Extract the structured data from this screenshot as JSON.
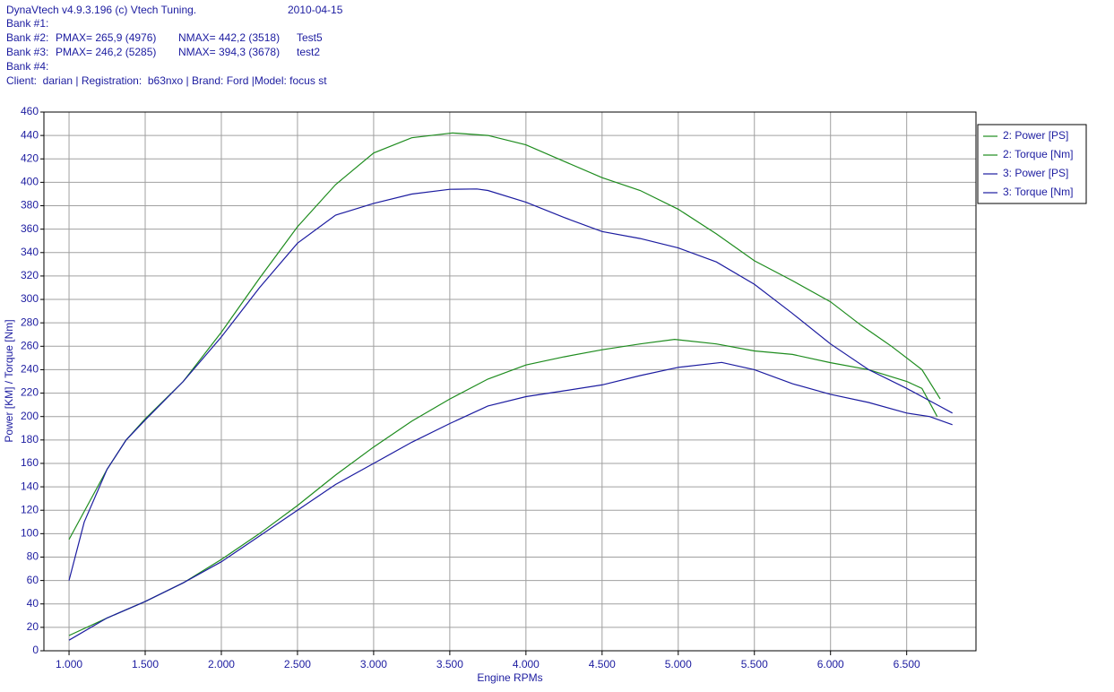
{
  "header": {
    "software": "DynaVtech v4.9.3.196 (c) Vtech Tuning.",
    "date": "2010-04-15",
    "banks": [
      {
        "label": "Bank #1:"
      },
      {
        "label": "Bank #2:",
        "pmax": "PMAX= 265,9 (4976)",
        "nmax": "NMAX= 442,2 (3518)",
        "name": "Test5"
      },
      {
        "label": "Bank #3:",
        "pmax": "PMAX= 246,2 (5285)",
        "nmax": "NMAX= 394,3 (3678)",
        "name": "test2"
      },
      {
        "label": "Bank #4:"
      }
    ],
    "client": "Client:  darian | Registration:  b63nxo | Brand: Ford |Model: focus st"
  },
  "chart_data": {
    "type": "line",
    "x_label": "Engine RPMs",
    "y_label": "Power [KM] / Torque [Nm]",
    "xlim": [
      835,
      6955
    ],
    "ylim": [
      0,
      460
    ],
    "xticks": [
      {
        "value": 1000,
        "label": "1.000"
      },
      {
        "value": 1500,
        "label": "1.500"
      },
      {
        "value": 2000,
        "label": "2.000"
      },
      {
        "value": 2500,
        "label": "2.500"
      },
      {
        "value": 3000,
        "label": "3.000"
      },
      {
        "value": 3500,
        "label": "3.500"
      },
      {
        "value": 4000,
        "label": "4.000"
      },
      {
        "value": 4500,
        "label": "4.500"
      },
      {
        "value": 5000,
        "label": "5.000"
      },
      {
        "value": 5500,
        "label": "5.500"
      },
      {
        "value": 6000,
        "label": "6.000"
      },
      {
        "value": 6500,
        "label": "6.500"
      }
    ],
    "yticks": [
      0,
      20,
      40,
      60,
      80,
      100,
      120,
      140,
      160,
      180,
      200,
      220,
      240,
      260,
      280,
      300,
      320,
      340,
      360,
      380,
      400,
      420,
      440,
      460
    ],
    "grid": true,
    "legend": "right",
    "series": [
      {
        "name": "2: Power [PS]",
        "color": "#1e8c1e",
        "x": [
          1000,
          1250,
          1500,
          1750,
          2000,
          2250,
          2500,
          2750,
          3000,
          3250,
          3500,
          3750,
          4000,
          4250,
          4500,
          4750,
          4976,
          5250,
          5500,
          5750,
          6000,
          6250,
          6500,
          6600,
          6700
        ],
        "values": [
          13,
          28,
          42,
          58,
          78,
          100,
          124,
          150,
          174,
          196,
          215,
          232,
          244,
          251,
          257,
          262,
          265.9,
          262,
          256,
          253,
          246,
          240,
          230,
          224,
          200
        ]
      },
      {
        "name": "2: Torque [Nm]",
        "color": "#1e8c1e",
        "x": [
          1000,
          1250,
          1375,
          1500,
          1750,
          2000,
          2250,
          2500,
          2750,
          3000,
          3250,
          3518,
          3750,
          4000,
          4250,
          4500,
          4750,
          5000,
          5250,
          5500,
          5750,
          6000,
          6200,
          6400,
          6600,
          6720
        ],
        "values": [
          95,
          155,
          180,
          198,
          230,
          272,
          318,
          362,
          398,
          425,
          438,
          442.2,
          440,
          432,
          418,
          404,
          393,
          377,
          356,
          333,
          316,
          298,
          278,
          260,
          240,
          215
        ]
      },
      {
        "name": "3: Power [PS]",
        "color": "#1c1ca0",
        "x": [
          1000,
          1250,
          1500,
          1750,
          2000,
          2250,
          2500,
          2750,
          3000,
          3250,
          3500,
          3750,
          4000,
          4250,
          4500,
          4750,
          5000,
          5285,
          5500,
          5750,
          6000,
          6250,
          6500,
          6650,
          6800
        ],
        "values": [
          9,
          28,
          42,
          58,
          76,
          98,
          120,
          142,
          160,
          178,
          194,
          209,
          217,
          222,
          227,
          235,
          242,
          246.2,
          240,
          228,
          219,
          212,
          203,
          200,
          193
        ]
      },
      {
        "name": "3: Torque [Nm]",
        "color": "#1c1ca0",
        "x": [
          1000,
          1100,
          1250,
          1375,
          1500,
          1750,
          2000,
          2250,
          2500,
          2750,
          3000,
          3250,
          3500,
          3678,
          3750,
          4000,
          4250,
          4500,
          4750,
          5000,
          5250,
          5500,
          5750,
          6000,
          6250,
          6500,
          6700,
          6800
        ],
        "values": [
          60,
          110,
          155,
          180,
          197,
          230,
          268,
          310,
          348,
          372,
          382,
          390,
          394,
          394.3,
          393,
          383,
          370,
          358,
          352,
          344,
          332,
          313,
          288,
          262,
          240,
          224,
          210,
          203
        ]
      }
    ]
  }
}
